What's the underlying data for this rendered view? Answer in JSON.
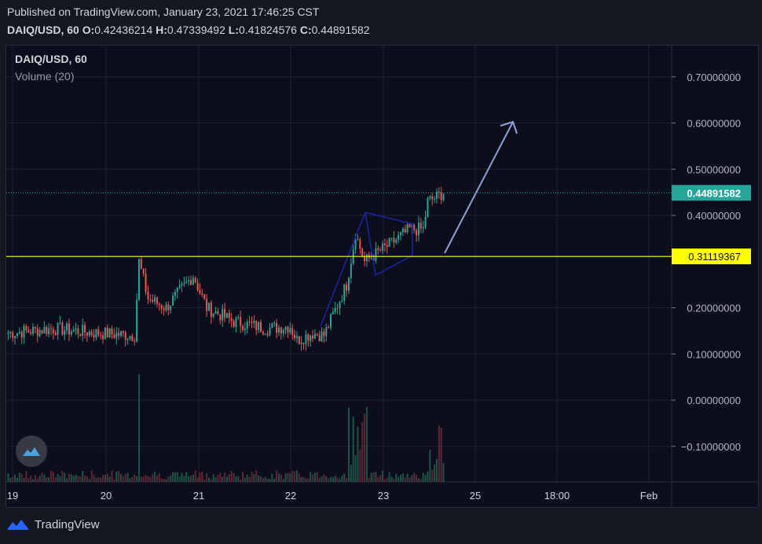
{
  "header": {
    "published": "Published on TradingView.com, January 23, 2021 17:46:25 CST",
    "symbol": "DAIQ/USD, 60",
    "o_label": "O:",
    "o_value": "0.42436214",
    "h_label": "H:",
    "h_value": "0.47339492",
    "l_label": "L:",
    "l_value": "0.41824576",
    "c_label": "C:",
    "c_value": "0.44891582"
  },
  "legend": {
    "symbol": "DAIQ/USD, 60",
    "indicator": "Volume (20)"
  },
  "footer": {
    "brand": "TradingView"
  },
  "colors": {
    "up": "#26a69a",
    "down": "#ef5350",
    "vol_up": "#1e5249",
    "vol_down": "#5e2635",
    "line": "#ffff00",
    "price_tag": "#26a69a",
    "drawing": "#1e22aa",
    "arrow": "#8ea1d6"
  },
  "chart_data": {
    "type": "candlestick",
    "y_ticks": [
      "0.70000000",
      "0.60000000",
      "0.50000000",
      "0.40000000",
      "0.20000000",
      "0.10000000",
      "0.00000000",
      "−0.10000000"
    ],
    "y_tick_values": [
      0.7,
      0.6,
      0.5,
      0.4,
      0.2,
      0.1,
      0.0,
      -0.1
    ],
    "x_ticks": [
      "19",
      "20",
      "21",
      "22",
      "23",
      "25",
      "18:00",
      "Feb"
    ],
    "horizontal_line": {
      "value": 0.31119367,
      "label": "0.31119367"
    },
    "last_price": {
      "value": 0.44891582,
      "label": "0.44891582"
    },
    "annotations": [
      "triangle pattern",
      "upward arrow"
    ]
  }
}
